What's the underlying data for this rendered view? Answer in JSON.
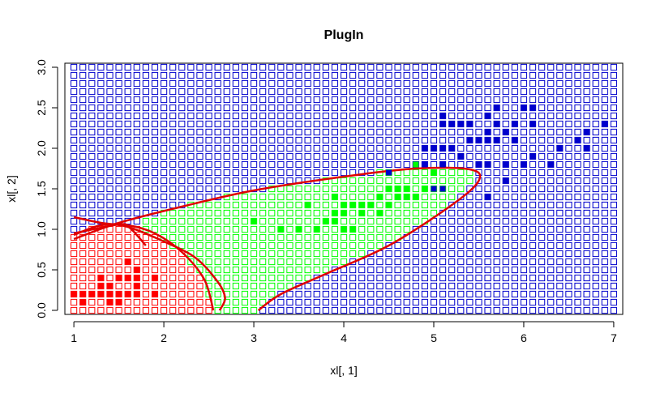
{
  "chart_data": {
    "type": "scatter",
    "title": "PlugIn",
    "xlabel": "xl[, 1]",
    "ylabel": "xl[, 2]",
    "xlim": [
      0.9,
      7.1
    ],
    "ylim": [
      -0.05,
      3.05
    ],
    "x_ticks": [
      "1",
      "2",
      "3",
      "4",
      "5",
      "6",
      "7"
    ],
    "y_ticks": [
      "0.0",
      "0.5",
      "1.0",
      "1.5",
      "2.0",
      "2.5",
      "3.0"
    ],
    "grid": {
      "x_start": 1.0,
      "x_end": 7.0,
      "x_step": 0.1,
      "y_start": 0.0,
      "y_end": 3.0,
      "y_step": 0.1,
      "marker": "open-square",
      "note": "background grid colored by predicted class"
    },
    "colors": {
      "class1": "#ff0000",
      "class2": "#00ff00",
      "class3": "#0000cc",
      "boundary": "#e00000"
    },
    "series": [
      {
        "color": "#ff0000",
        "points": [
          [
            1.0,
            0.2
          ],
          [
            1.1,
            0.1
          ],
          [
            1.1,
            0.2
          ],
          [
            1.2,
            0.2
          ],
          [
            1.3,
            0.2
          ],
          [
            1.3,
            0.3
          ],
          [
            1.3,
            0.4
          ],
          [
            1.4,
            0.1
          ],
          [
            1.4,
            0.2
          ],
          [
            1.4,
            0.3
          ],
          [
            1.5,
            0.1
          ],
          [
            1.5,
            0.2
          ],
          [
            1.5,
            0.4
          ],
          [
            1.6,
            0.2
          ],
          [
            1.6,
            0.4
          ],
          [
            1.6,
            0.6
          ],
          [
            1.7,
            0.2
          ],
          [
            1.7,
            0.3
          ],
          [
            1.7,
            0.4
          ],
          [
            1.7,
            0.5
          ],
          [
            1.9,
            0.2
          ],
          [
            1.9,
            0.4
          ]
        ]
      },
      {
        "color": "#00ff00",
        "points": [
          [
            3.0,
            1.1
          ],
          [
            3.3,
            1.0
          ],
          [
            3.5,
            1.0
          ],
          [
            3.6,
            1.3
          ],
          [
            3.7,
            1.0
          ],
          [
            3.8,
            1.1
          ],
          [
            3.9,
            1.1
          ],
          [
            3.9,
            1.4
          ],
          [
            3.9,
            1.2
          ],
          [
            4.0,
            1.0
          ],
          [
            4.0,
            1.2
          ],
          [
            4.0,
            1.3
          ],
          [
            4.1,
            1.0
          ],
          [
            4.1,
            1.3
          ],
          [
            4.2,
            1.2
          ],
          [
            4.2,
            1.3
          ],
          [
            4.3,
            1.3
          ],
          [
            4.4,
            1.4
          ],
          [
            4.4,
            1.2
          ],
          [
            4.5,
            1.5
          ],
          [
            4.5,
            1.3
          ],
          [
            4.6,
            1.4
          ],
          [
            4.6,
            1.5
          ],
          [
            4.7,
            1.4
          ],
          [
            4.7,
            1.5
          ],
          [
            4.8,
            1.4
          ],
          [
            4.9,
            1.5
          ],
          [
            5.0,
            1.7
          ],
          [
            4.5,
            1.7
          ],
          [
            4.8,
            1.8
          ]
        ]
      },
      {
        "color": "#0000cc",
        "points": [
          [
            4.5,
            1.7
          ],
          [
            4.9,
            1.8
          ],
          [
            4.9,
            2.0
          ],
          [
            5.0,
            1.5
          ],
          [
            5.0,
            2.0
          ],
          [
            5.1,
            1.5
          ],
          [
            5.1,
            1.8
          ],
          [
            5.1,
            2.0
          ],
          [
            5.1,
            2.3
          ],
          [
            5.1,
            2.4
          ],
          [
            5.2,
            2.0
          ],
          [
            5.2,
            2.3
          ],
          [
            5.3,
            1.9
          ],
          [
            5.3,
            2.3
          ],
          [
            5.4,
            2.1
          ],
          [
            5.4,
            2.3
          ],
          [
            5.5,
            1.8
          ],
          [
            5.5,
            2.1
          ],
          [
            5.6,
            1.4
          ],
          [
            5.6,
            1.8
          ],
          [
            5.6,
            2.1
          ],
          [
            5.6,
            2.2
          ],
          [
            5.6,
            2.4
          ],
          [
            5.7,
            2.1
          ],
          [
            5.7,
            2.3
          ],
          [
            5.7,
            2.5
          ],
          [
            5.8,
            1.6
          ],
          [
            5.8,
            1.8
          ],
          [
            5.8,
            2.2
          ],
          [
            5.9,
            2.1
          ],
          [
            5.9,
            2.3
          ],
          [
            6.0,
            1.8
          ],
          [
            6.0,
            2.5
          ],
          [
            6.1,
            1.9
          ],
          [
            6.1,
            2.3
          ],
          [
            6.1,
            2.5
          ],
          [
            6.3,
            1.8
          ],
          [
            6.4,
            2.0
          ],
          [
            6.6,
            2.1
          ],
          [
            6.7,
            2.0
          ],
          [
            6.7,
            2.2
          ],
          [
            6.9,
            2.3
          ]
        ]
      }
    ],
    "decision_boundaries": [
      [
        [
          1.0,
          0.93
        ],
        [
          1.3,
          1.05
        ],
        [
          1.6,
          1.05
        ],
        [
          1.9,
          0.95
        ],
        [
          2.2,
          0.72
        ],
        [
          2.45,
          0.38
        ],
        [
          2.55,
          0.0
        ]
      ],
      [
        [
          1.0,
          1.15
        ],
        [
          1.3,
          1.08
        ],
        [
          1.6,
          1.03
        ],
        [
          2.0,
          0.85
        ],
        [
          2.35,
          0.65
        ],
        [
          2.6,
          0.35
        ],
        [
          2.68,
          0.15
        ],
        [
          2.62,
          0.0
        ]
      ],
      [
        [
          1.0,
          0.88
        ],
        [
          1.5,
          1.08
        ],
        [
          2.2,
          1.28
        ],
        [
          3.0,
          1.48
        ],
        [
          4.0,
          1.65
        ],
        [
          4.8,
          1.75
        ],
        [
          5.4,
          1.74
        ],
        [
          5.5,
          1.6
        ],
        [
          5.2,
          1.3
        ],
        [
          4.5,
          0.8
        ],
        [
          3.8,
          0.45
        ],
        [
          3.3,
          0.2
        ],
        [
          3.05,
          0.0
        ]
      ],
      [
        [
          1.0,
          0.95
        ],
        [
          1.5,
          1.06
        ],
        [
          1.62,
          1.02
        ],
        [
          1.8,
          0.8
        ]
      ]
    ]
  }
}
